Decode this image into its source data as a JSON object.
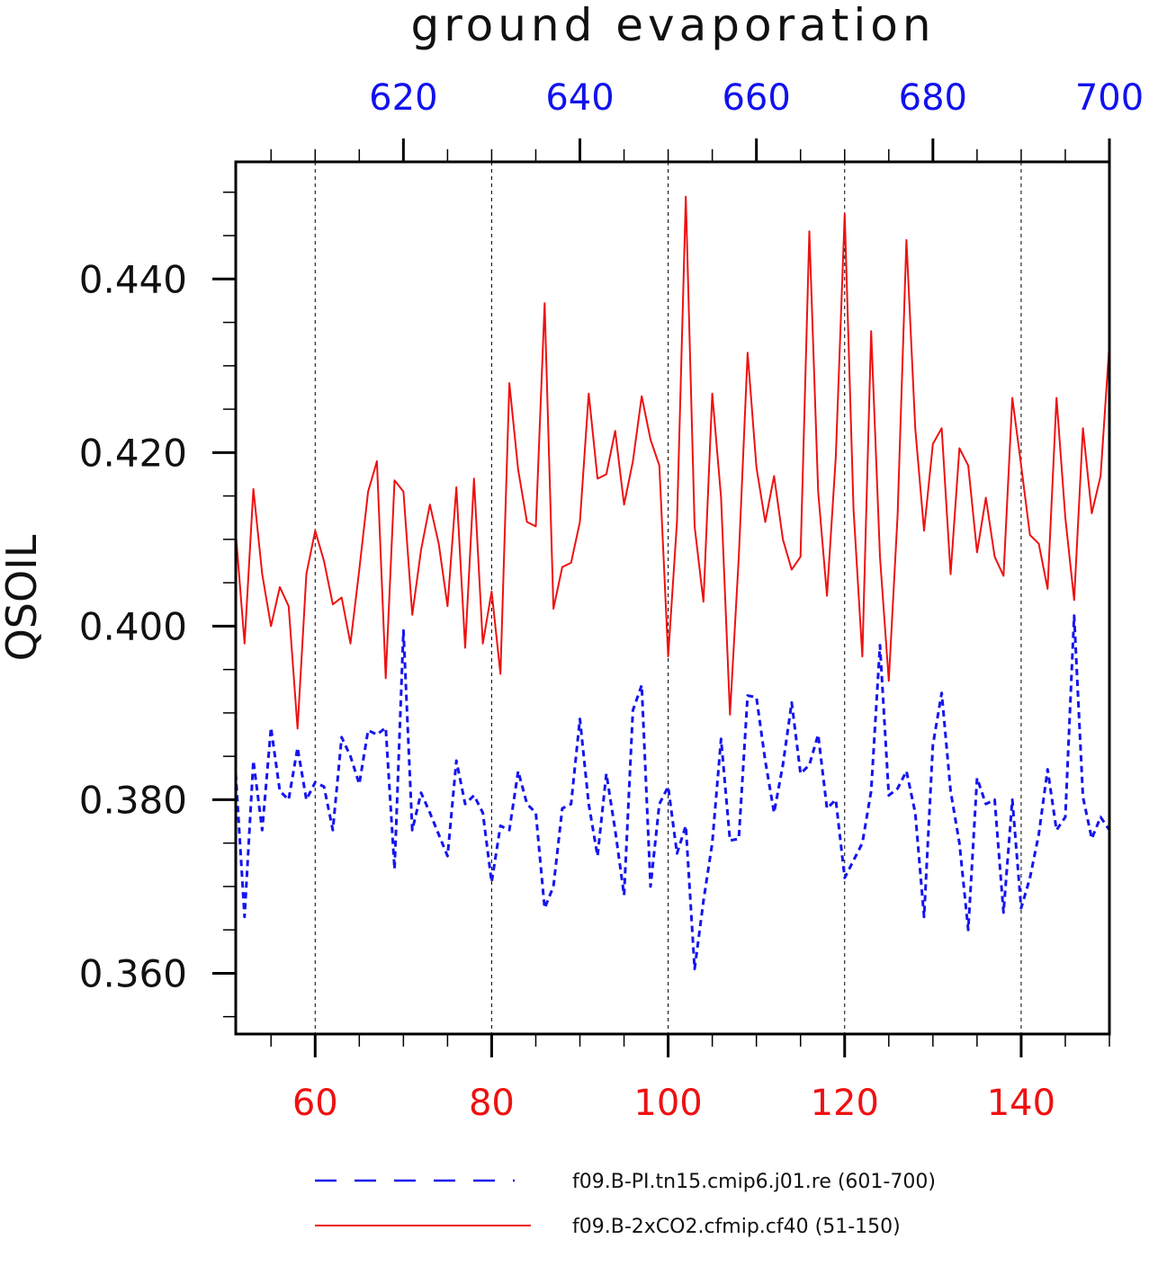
{
  "chart_data": {
    "type": "line",
    "title": "ground evaporation",
    "ylabel": "QSOIL",
    "ylim": [
      0.353,
      0.4535
    ],
    "y_ticks": [
      "0.360",
      "0.380",
      "0.400",
      "0.420",
      "0.440"
    ],
    "y_tick_values": [
      0.36,
      0.38,
      0.4,
      0.42,
      0.44
    ],
    "bottom_axis": {
      "range": [
        51,
        150
      ],
      "ticks": [
        "60",
        "80",
        "100",
        "120",
        "140"
      ],
      "tick_values": [
        60,
        80,
        100,
        120,
        140
      ],
      "color": "#ee1111"
    },
    "top_axis": {
      "range": [
        601,
        700
      ],
      "ticks": [
        "620",
        "640",
        "660",
        "680",
        "700"
      ],
      "tick_values": [
        620,
        640,
        660,
        680,
        700
      ],
      "color": "#1111ee"
    },
    "grid": "vertical dashed lines at bottom-axis major ticks",
    "legend_position": "bottom",
    "series": [
      {
        "name": "f09.B-PI.tn15.cmip6.j01.re (601-700)",
        "axis": "top",
        "color": "#1515ee",
        "style": "dashed",
        "x_start": 601,
        "values": [
          0.383,
          0.3665,
          0.3845,
          0.3765,
          0.3883,
          0.381,
          0.38,
          0.386,
          0.38,
          0.382,
          0.3815,
          0.3765,
          0.3872,
          0.385,
          0.3818,
          0.388,
          0.3875,
          0.3883,
          0.372,
          0.3995,
          0.3765,
          0.3808,
          0.3785,
          0.376,
          0.3735,
          0.3845,
          0.3795,
          0.3805,
          0.3785,
          0.3705,
          0.377,
          0.3765,
          0.3833,
          0.3795,
          0.3785,
          0.3675,
          0.37,
          0.379,
          0.3795,
          0.3893,
          0.3795,
          0.3735,
          0.383,
          0.3765,
          0.369,
          0.3903,
          0.3932,
          0.37,
          0.3795,
          0.3815,
          0.3738,
          0.377,
          0.3605,
          0.3683,
          0.375,
          0.387,
          0.3753,
          0.3755,
          0.392,
          0.3918,
          0.3845,
          0.3785,
          0.384,
          0.3912,
          0.383,
          0.384,
          0.3875,
          0.379,
          0.38,
          0.371,
          0.373,
          0.375,
          0.381,
          0.3978,
          0.3805,
          0.3813,
          0.3833,
          0.3785,
          0.3665,
          0.3863,
          0.3923,
          0.381,
          0.375,
          0.365,
          0.3825,
          0.3795,
          0.38,
          0.367,
          0.38,
          0.3675,
          0.371,
          0.376,
          0.3835,
          0.3765,
          0.378,
          0.4012,
          0.3803,
          0.3755,
          0.378,
          0.3765
        ]
      },
      {
        "name": "f09.B-2xCO2.cfmip.cf40 (51-150)",
        "axis": "bottom",
        "color": "#ee1111",
        "style": "solid",
        "x_start": 51,
        "values": [
          0.4108,
          0.398,
          0.4158,
          0.406,
          0.4,
          0.4045,
          0.4023,
          0.3882,
          0.406,
          0.411,
          0.4075,
          0.4025,
          0.4033,
          0.398,
          0.4065,
          0.4155,
          0.419,
          0.394,
          0.4168,
          0.4155,
          0.4013,
          0.4088,
          0.414,
          0.4095,
          0.4023,
          0.416,
          0.3975,
          0.417,
          0.398,
          0.404,
          0.3945,
          0.428,
          0.418,
          0.412,
          0.4115,
          0.4372,
          0.402,
          0.4068,
          0.4073,
          0.412,
          0.4268,
          0.417,
          0.4175,
          0.4225,
          0.414,
          0.419,
          0.4265,
          0.4215,
          0.4185,
          0.3965,
          0.412,
          0.4495,
          0.4115,
          0.4028,
          0.4268,
          0.4148,
          0.3898,
          0.408,
          0.4315,
          0.4183,
          0.412,
          0.4173,
          0.41,
          0.4065,
          0.408,
          0.4455,
          0.4155,
          0.4035,
          0.4195,
          0.4475,
          0.4135,
          0.3965,
          0.434,
          0.408,
          0.3937,
          0.4128,
          0.4445,
          0.4228,
          0.411,
          0.421,
          0.4228,
          0.406,
          0.4205,
          0.4185,
          0.4085,
          0.4148,
          0.408,
          0.4058,
          0.4263,
          0.4185,
          0.4105,
          0.4095,
          0.4043,
          0.4263,
          0.4125,
          0.403,
          0.4228,
          0.413,
          0.4173,
          0.4325
        ]
      }
    ]
  }
}
